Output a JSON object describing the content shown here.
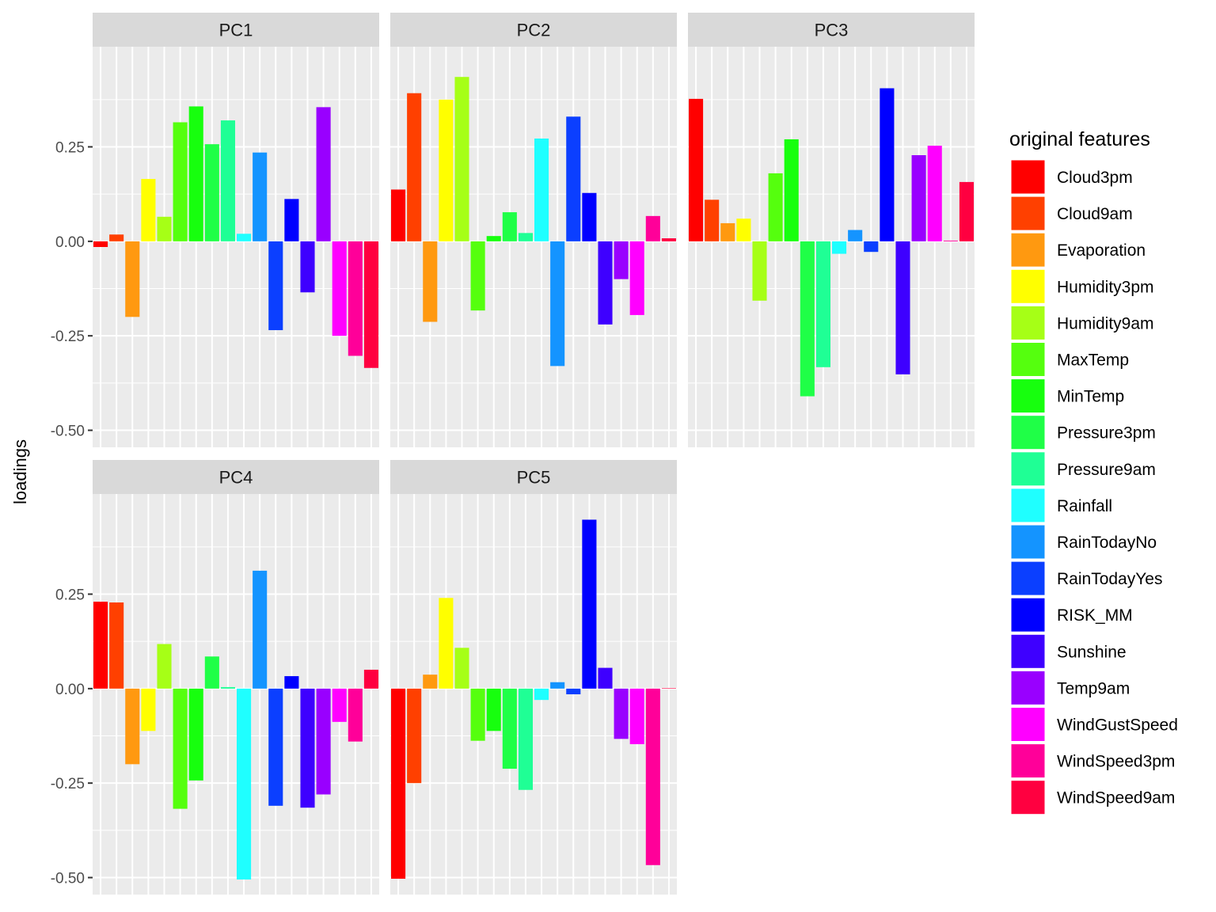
{
  "chart_data": {
    "type": "bar",
    "ylabel": "loadings",
    "xlabel": "",
    "ylim": [
      -0.545,
      0.515
    ],
    "y_ticks": [
      "0.25",
      "0.00",
      "-0.25",
      "-0.50"
    ],
    "grid": true,
    "legend": {
      "title": "original features",
      "placement": "right"
    },
    "categories": [
      "Cloud3pm",
      "Cloud9am",
      "Evaporation",
      "Humidity3pm",
      "Humidity9am",
      "MaxTemp",
      "MinTemp",
      "Pressure3pm",
      "Pressure9am",
      "Rainfall",
      "RainTodayNo",
      "RainTodayYes",
      "RISK_MM",
      "Sunshine",
      "Temp9am",
      "WindGustSpeed",
      "WindSpeed3pm",
      "WindSpeed9am"
    ],
    "colors": [
      "#FF0000",
      "#FF4000",
      "#FF9910",
      "#FFFF00",
      "#A6FF16",
      "#55FF0E",
      "#17FF0E",
      "#1FFF47",
      "#1FFF95",
      "#1FFFFF",
      "#1494FF",
      "#0B3FFF",
      "#0000FF",
      "#3E00FF",
      "#9900FF",
      "#FF00FF",
      "#FF0099",
      "#FF0040"
    ],
    "facets": [
      {
        "title": "PC1",
        "values": [
          -0.015,
          0.018,
          -0.2,
          0.165,
          0.065,
          0.315,
          0.357,
          0.257,
          0.32,
          0.02,
          0.235,
          -0.235,
          0.112,
          -0.135,
          0.355,
          -0.25,
          -0.303,
          -0.335
        ]
      },
      {
        "title": "PC2",
        "values": [
          0.137,
          0.392,
          -0.213,
          0.375,
          0.435,
          -0.183,
          0.014,
          0.077,
          0.022,
          0.272,
          -0.33,
          0.33,
          0.128,
          -0.22,
          -0.1,
          -0.195,
          0.067,
          0.008
        ]
      },
      {
        "title": "PC3",
        "values": [
          0.377,
          0.11,
          0.048,
          0.06,
          -0.157,
          0.18,
          0.27,
          -0.41,
          -0.333,
          -0.033,
          0.03,
          -0.028,
          0.405,
          -0.352,
          0.228,
          0.253,
          0.002,
          0.157
        ]
      },
      {
        "title": "PC4",
        "values": [
          0.23,
          0.228,
          -0.2,
          -0.112,
          0.118,
          -0.318,
          -0.243,
          0.085,
          0.004,
          -0.505,
          0.312,
          -0.31,
          0.033,
          -0.315,
          -0.28,
          -0.088,
          -0.14,
          0.05
        ]
      },
      {
        "title": "PC5",
        "values": [
          -0.503,
          -0.25,
          0.037,
          0.24,
          0.108,
          -0.138,
          -0.112,
          -0.212,
          -0.268,
          -0.03,
          0.017,
          -0.015,
          0.447,
          0.055,
          -0.133,
          -0.147,
          -0.467,
          0.001
        ]
      }
    ]
  }
}
